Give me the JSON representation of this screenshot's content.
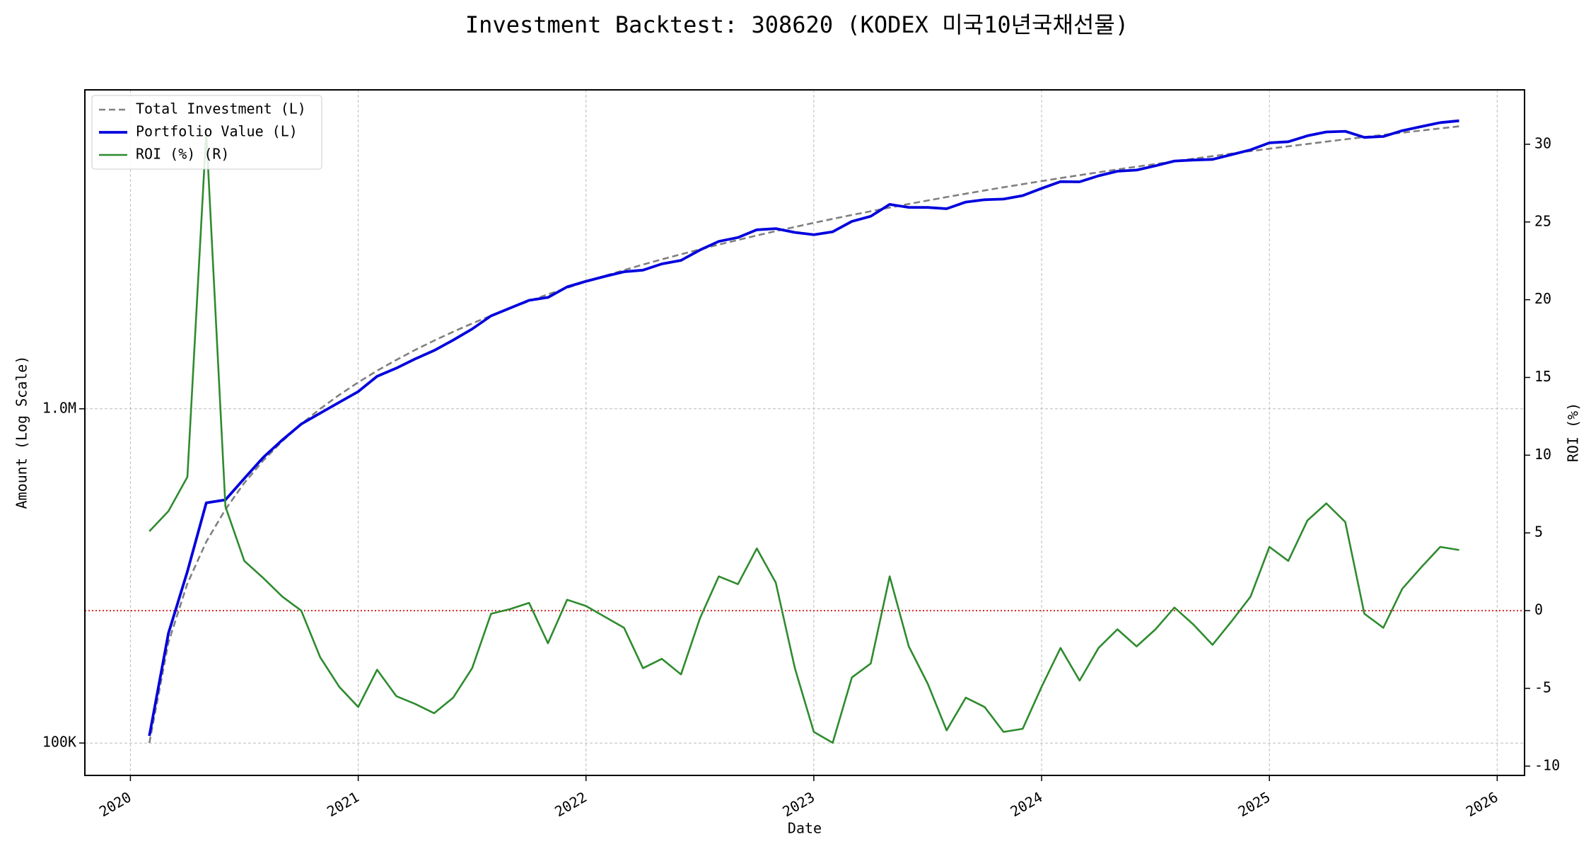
{
  "chart_data": {
    "type": "line",
    "title": "Investment Backtest: 308620 (KODEX 미국10년국채선물)",
    "x_label": "Date",
    "y_label": "Amount (Log Scale)",
    "y2_label": "ROI (%)",
    "y_log": true,
    "grid": true,
    "legend": "upper left",
    "y_label_color": "#1f1fc8",
    "y2_label_color": "#228b22",
    "xlim": [
      2019.8,
      2026.12
    ],
    "xticks": [
      2020,
      2021,
      2022,
      2023,
      2024,
      2025,
      2026
    ],
    "ylim": [
      80000,
      9000000
    ],
    "yticks": [
      {
        "value": 100000,
        "label": "100K"
      },
      {
        "value": 1000000,
        "label": "1.0M"
      }
    ],
    "y2lim": [
      -10.6,
      33.5
    ],
    "y2ticks": [
      -10,
      -5,
      0,
      5,
      10,
      15,
      20,
      25,
      30
    ],
    "y2_reference_line": {
      "value": 0,
      "color": "#d62728"
    },
    "x": [
      2020.083,
      2020.167,
      2020.25,
      2020.333,
      2020.417,
      2020.5,
      2020.583,
      2020.667,
      2020.75,
      2020.833,
      2020.917,
      2021.0,
      2021.083,
      2021.167,
      2021.25,
      2021.333,
      2021.417,
      2021.5,
      2021.583,
      2021.667,
      2021.75,
      2021.833,
      2021.917,
      2022.0,
      2022.083,
      2022.167,
      2022.25,
      2022.333,
      2022.417,
      2022.5,
      2022.583,
      2022.667,
      2022.75,
      2022.833,
      2022.917,
      2023.0,
      2023.083,
      2023.167,
      2023.25,
      2023.333,
      2023.417,
      2023.5,
      2023.583,
      2023.667,
      2023.75,
      2023.833,
      2023.917,
      2024.0,
      2024.083,
      2024.167,
      2024.25,
      2024.333,
      2024.417,
      2024.5,
      2024.583,
      2024.667,
      2024.75,
      2024.833,
      2024.917,
      2025.0,
      2025.083,
      2025.167,
      2025.25,
      2025.333,
      2025.417,
      2025.5,
      2025.583,
      2025.667,
      2025.75,
      2025.833
    ],
    "series": [
      {
        "name": "Total Investment (L)",
        "color": "#808080",
        "dashed": true,
        "axis": "y",
        "values": [
          100000,
          200000,
          300000,
          400000,
          500000,
          600000,
          700000,
          800000,
          900000,
          1000000,
          1100000,
          1200000,
          1300000,
          1400000,
          1500000,
          1600000,
          1700000,
          1800000,
          1900000,
          2000000,
          2100000,
          2200000,
          2300000,
          2400000,
          2500000,
          2600000,
          2700000,
          2800000,
          2900000,
          3000000,
          3100000,
          3200000,
          3300000,
          3400000,
          3500000,
          3600000,
          3700000,
          3800000,
          3900000,
          4000000,
          4100000,
          4200000,
          4300000,
          4400000,
          4500000,
          4600000,
          4700000,
          4800000,
          4900000,
          5000000,
          5100000,
          5200000,
          5300000,
          5400000,
          5500000,
          5600000,
          5700000,
          5800000,
          5900000,
          6000000,
          6100000,
          6200000,
          6300000,
          6400000,
          6500000,
          6600000,
          6700000,
          6800000,
          6900000,
          7000000
        ]
      },
      {
        "name": "Portfolio Value (L)",
        "color": "#0000dd",
        "dashed": false,
        "axis": "y",
        "values": [
          105000,
          213000,
          326000,
          523000,
          534000,
          619000,
          715000,
          807000,
          900000,
          970000,
          1046000,
          1126000,
          1251000,
          1323000,
          1410000,
          1494000,
          1605000,
          1733000,
          1896000,
          2002000,
          2111000,
          2154000,
          2316000,
          2407000,
          2490000,
          2571000,
          2600000,
          2713000,
          2781000,
          2985000,
          3168000,
          3254000,
          3432000,
          3461000,
          3371000,
          3319000,
          3386000,
          3637000,
          3767000,
          4088000,
          4006000,
          4003000,
          3969000,
          4154000,
          4221000,
          4241000,
          4343000,
          4565000,
          4782000,
          4775000,
          4978000,
          5138000,
          5178000,
          5335000,
          5511000,
          5550000,
          5575000,
          5759000,
          5953000,
          6246000,
          6295000,
          6560000,
          6735000,
          6765000,
          6487000,
          6527000,
          6794000,
          6990000,
          7183000,
          7273000
        ]
      },
      {
        "name": "ROI (%) (R)",
        "color": "#2e8b2e",
        "dashed": false,
        "axis": "y2",
        "values": [
          5.1,
          6.4,
          8.6,
          30.8,
          6.7,
          3.2,
          2.1,
          0.9,
          0.0,
          -3.0,
          -4.9,
          -6.2,
          -3.8,
          -5.5,
          -6.0,
          -6.6,
          -5.6,
          -3.7,
          -0.2,
          0.1,
          0.5,
          -2.1,
          0.7,
          0.3,
          -0.4,
          -1.1,
          -3.7,
          -3.1,
          -4.1,
          -0.5,
          2.2,
          1.7,
          4.0,
          1.8,
          -3.7,
          -7.8,
          -8.5,
          -4.3,
          -3.4,
          2.2,
          -2.3,
          -4.7,
          -7.7,
          -5.6,
          -6.2,
          -7.8,
          -7.6,
          -4.9,
          -2.4,
          -4.5,
          -2.4,
          -1.2,
          -2.3,
          -1.2,
          0.2,
          -0.9,
          -2.2,
          -0.7,
          0.9,
          4.1,
          3.2,
          5.8,
          6.9,
          5.7,
          -0.2,
          -1.1,
          1.4,
          2.8,
          4.1,
          3.9
        ]
      }
    ]
  }
}
